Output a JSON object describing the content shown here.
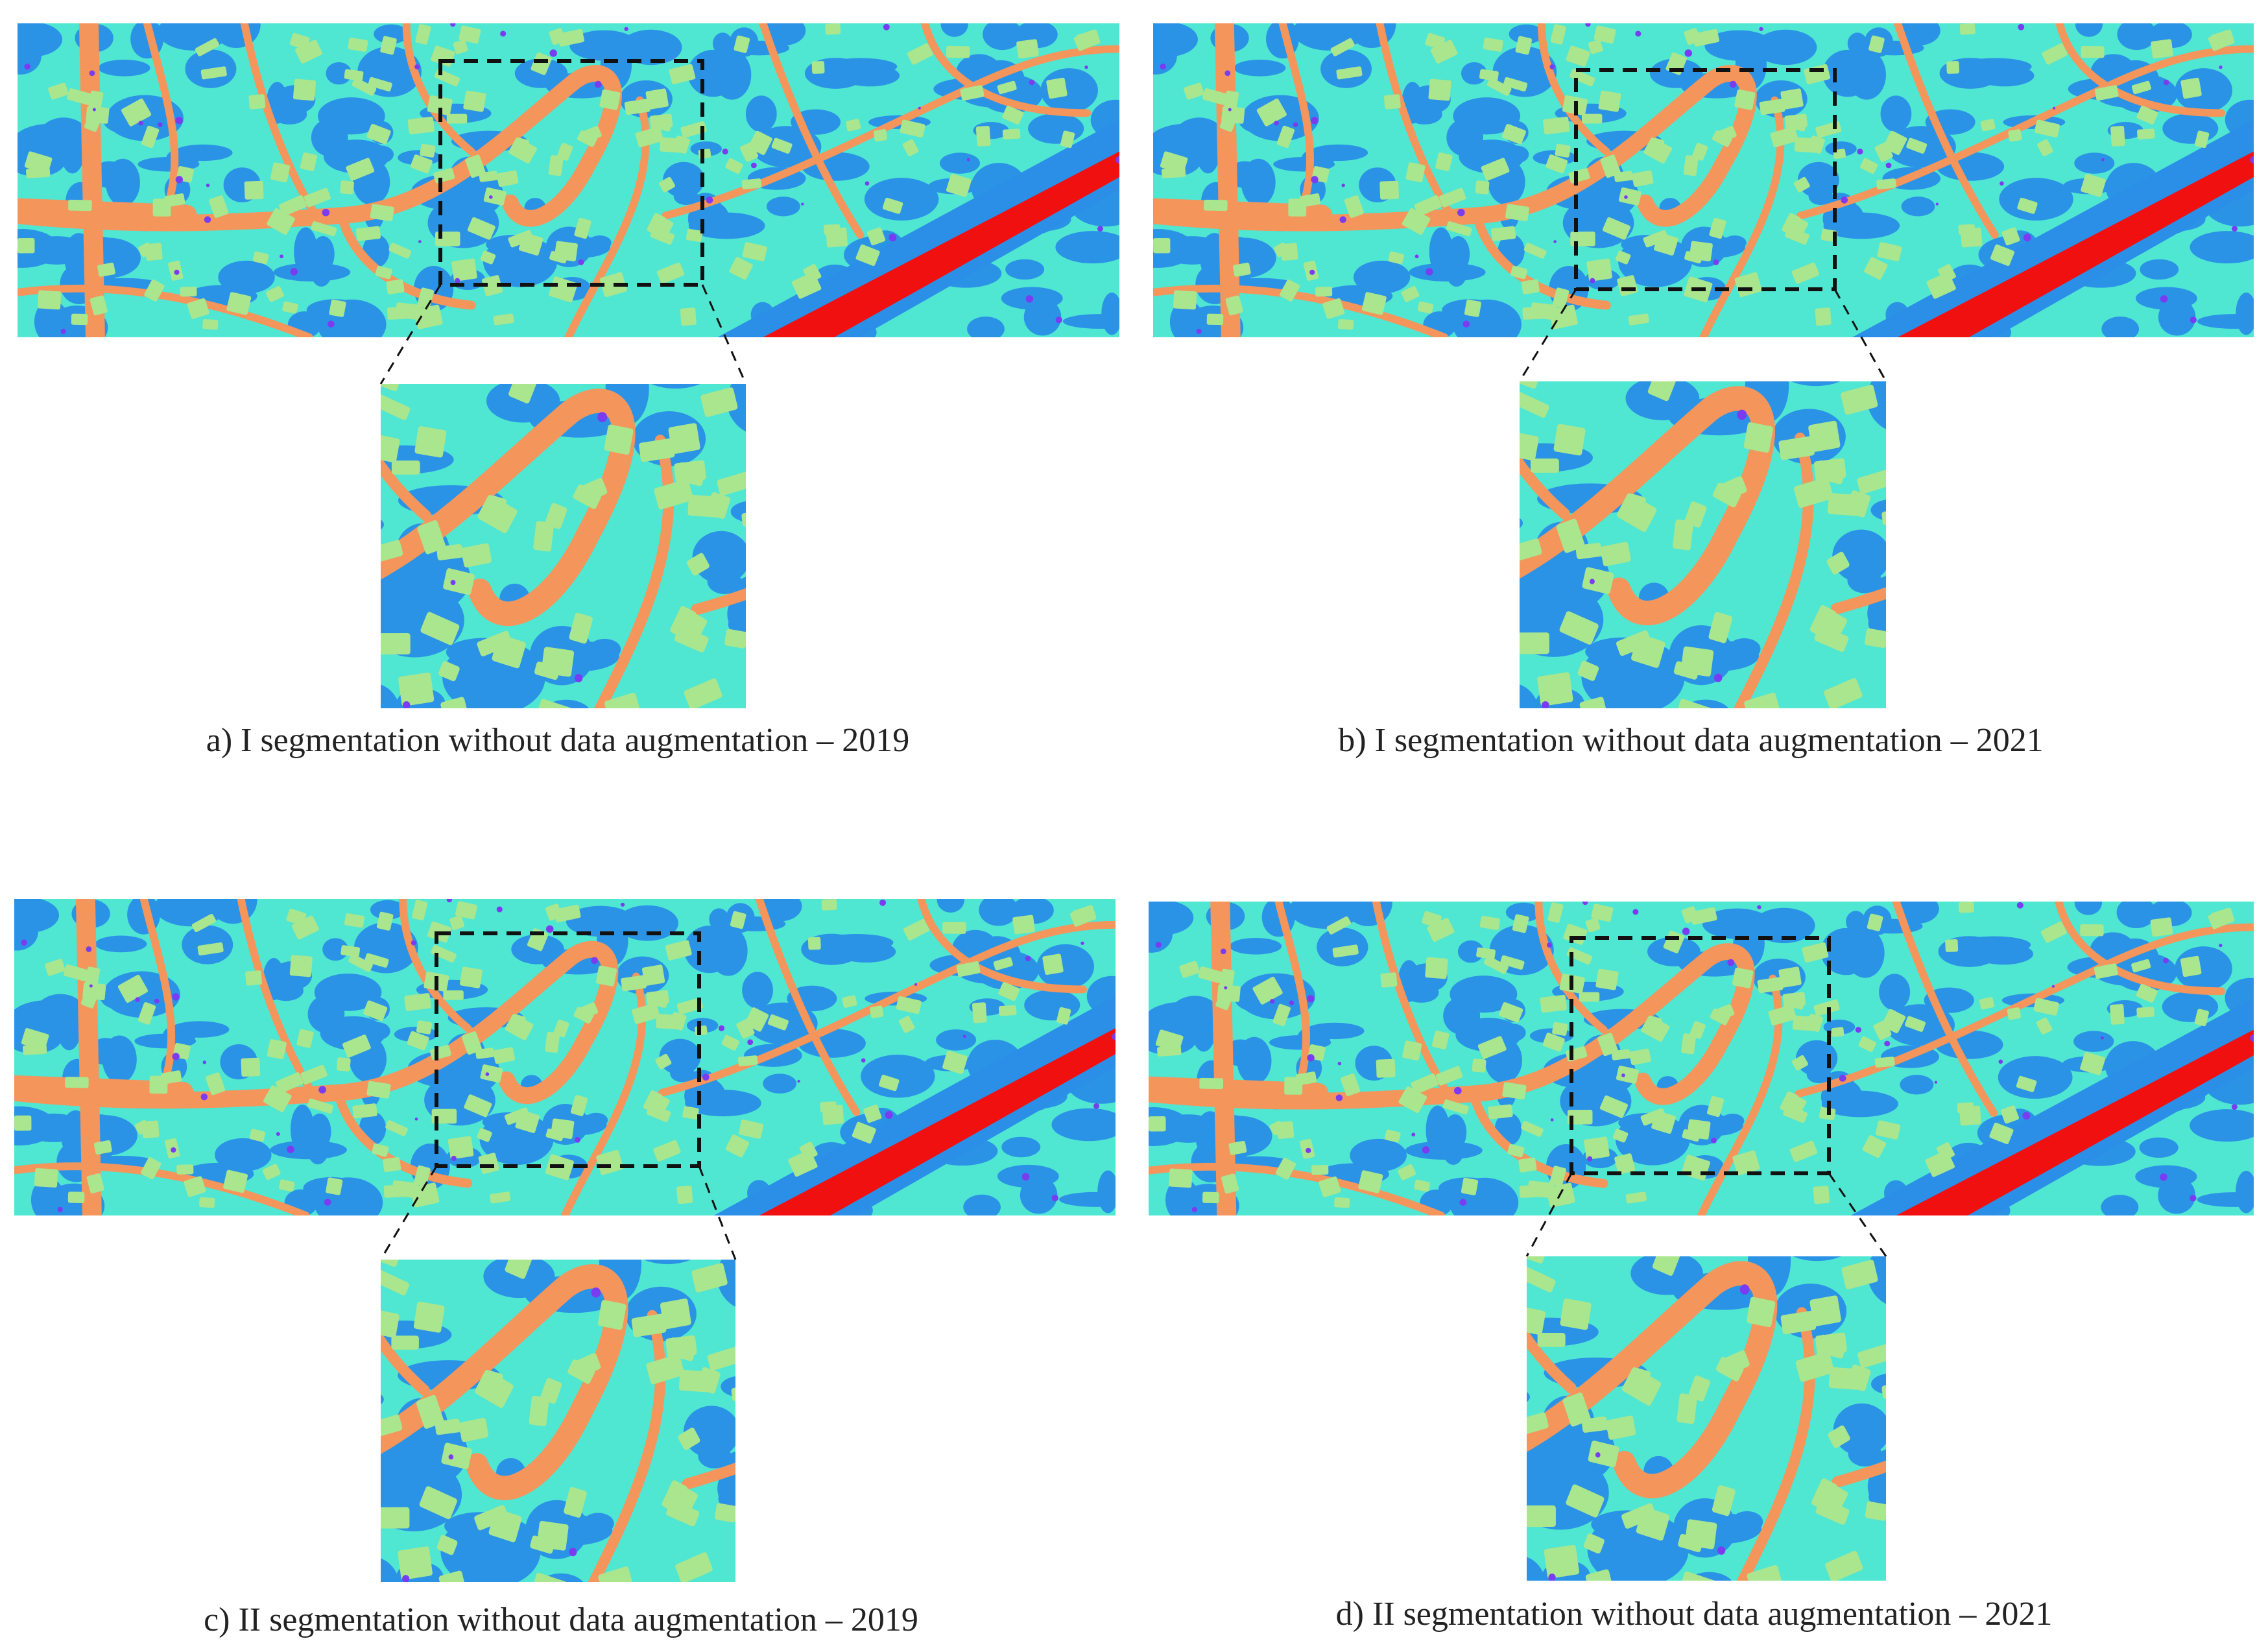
{
  "panels": [
    {
      "caption": "a) I segmentation without data augmentation – 2019"
    },
    {
      "caption": "b) I segmentation without data augmentation – 2021"
    },
    {
      "caption": "c) II segmentation without data augmentation – 2019"
    },
    {
      "caption": "d) II segmentation without data augmentation – 2021"
    }
  ]
}
